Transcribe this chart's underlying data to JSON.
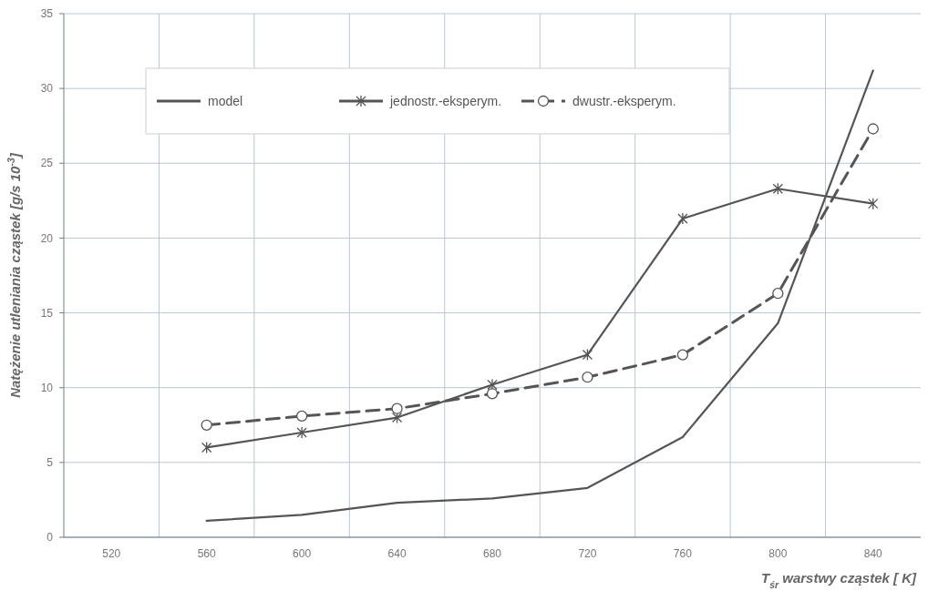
{
  "chart_data": {
    "type": "line",
    "xlabel": "T$_{śr}$ warstwy cząstek [ K]",
    "ylabel": "Natężenie utleniania cząstek [g/s 10$^{-3}$]",
    "categories": [
      "520",
      "560",
      "600",
      "640",
      "680",
      "720",
      "760",
      "800",
      "840"
    ],
    "series": [
      {
        "name": "model",
        "color": "#555555",
        "marker": "none",
        "line_style": "solid",
        "values": [
          null,
          1.1,
          1.5,
          2.3,
          2.6,
          3.3,
          6.7,
          14.3,
          31.2
        ]
      },
      {
        "name": "jednostr.-eksperym.",
        "color": "#555555",
        "marker": "cross",
        "line_style": "solid",
        "values": [
          null,
          6.0,
          7.0,
          8.0,
          10.2,
          12.2,
          21.3,
          23.3,
          22.3
        ]
      },
      {
        "name": "dwustr.-eksperym.",
        "color": "#555555",
        "marker": "circle",
        "line_style": "dashed",
        "values": [
          null,
          7.5,
          8.1,
          8.6,
          9.6,
          10.7,
          12.2,
          16.3,
          27.3
        ]
      }
    ],
    "ylim": [
      0,
      35
    ],
    "yticks": [
      0,
      5,
      10,
      15,
      20,
      25,
      30,
      35
    ],
    "grid": true,
    "legend": "top left"
  }
}
